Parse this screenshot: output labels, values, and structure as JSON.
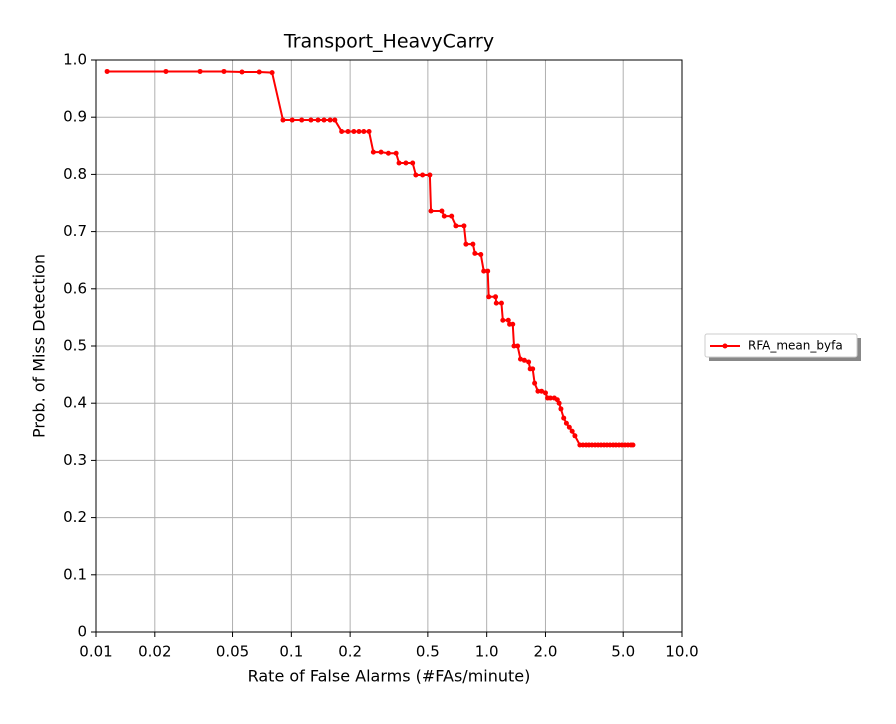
{
  "chart_data": {
    "type": "line",
    "title": "Transport_HeavyCarry",
    "x_label": "Rate of False Alarms (#FAs/minute)",
    "y_label": "Prob. of Miss Detection",
    "x_scale": "log",
    "grid": true,
    "legend_position": "right",
    "xlim": [
      0.01,
      10
    ],
    "ylim": [
      0,
      1
    ],
    "xticks": [
      0.01,
      0.02,
      0.05,
      0.1,
      0.2,
      0.5,
      {
        "value": 1,
        "label": "1.0"
      },
      {
        "value": 2,
        "label": "2.0"
      },
      {
        "value": 5,
        "label": "5.0"
      },
      {
        "value": 10,
        "label": "10.0"
      }
    ],
    "yticks": [
      0,
      0.1,
      0.2,
      0.3,
      0.4,
      0.5,
      0.6,
      0.7,
      0.8,
      0.9,
      {
        "value": 1,
        "label": "1.0"
      }
    ],
    "x": [
      0.0114,
      0.0228,
      0.0341,
      0.0452,
      0.0559,
      0.0685,
      0.0797,
      0.0906,
      0.101,
      0.113,
      0.126,
      0.137,
      0.147,
      0.158,
      0.167,
      0.181,
      0.195,
      0.209,
      0.222,
      0.235,
      0.25,
      0.263,
      0.288,
      0.314,
      0.344,
      0.356,
      0.386,
      0.418,
      0.434,
      0.47,
      0.512,
      0.519,
      0.59,
      0.607,
      0.662,
      0.696,
      0.765,
      0.783,
      0.85,
      0.87,
      0.933,
      0.966,
      1.012,
      1.024,
      1.11,
      1.12,
      1.19,
      1.21,
      1.29,
      1.31,
      1.36,
      1.38,
      1.44,
      1.49,
      1.56,
      1.64,
      1.67,
      1.72,
      1.76,
      1.83,
      1.91,
      2.0,
      2.05,
      2.12,
      2.22,
      2.3,
      2.35,
      2.4,
      2.48,
      2.56,
      2.65,
      2.74,
      2.83,
      3.0,
      3.11,
      3.23,
      3.34,
      3.46,
      3.59,
      3.72,
      3.85,
      3.99,
      4.13,
      4.28,
      4.44,
      4.59,
      4.76,
      4.93,
      5.11,
      5.29,
      5.48,
      5.61
    ],
    "series": [
      {
        "name": "RFA_mean_byfa",
        "color": "#ff0000",
        "values": [
          0.98,
          0.98,
          0.98,
          0.98,
          0.979,
          0.979,
          0.978,
          0.895,
          0.895,
          0.895,
          0.895,
          0.895,
          0.895,
          0.895,
          0.895,
          0.875,
          0.875,
          0.875,
          0.875,
          0.875,
          0.875,
          0.839,
          0.839,
          0.837,
          0.837,
          0.82,
          0.82,
          0.82,
          0.799,
          0.799,
          0.799,
          0.736,
          0.736,
          0.727,
          0.727,
          0.71,
          0.71,
          0.678,
          0.678,
          0.662,
          0.66,
          0.631,
          0.631,
          0.586,
          0.586,
          0.575,
          0.575,
          0.545,
          0.545,
          0.538,
          0.538,
          0.5,
          0.5,
          0.477,
          0.475,
          0.472,
          0.46,
          0.46,
          0.435,
          0.421,
          0.421,
          0.418,
          0.409,
          0.409,
          0.409,
          0.406,
          0.4,
          0.39,
          0.374,
          0.365,
          0.358,
          0.351,
          0.343,
          0.327,
          0.327,
          0.327,
          0.327,
          0.327,
          0.327,
          0.327,
          0.327,
          0.327,
          0.327,
          0.327,
          0.327,
          0.327,
          0.327,
          0.327,
          0.327,
          0.327,
          0.327,
          0.327
        ]
      }
    ]
  }
}
